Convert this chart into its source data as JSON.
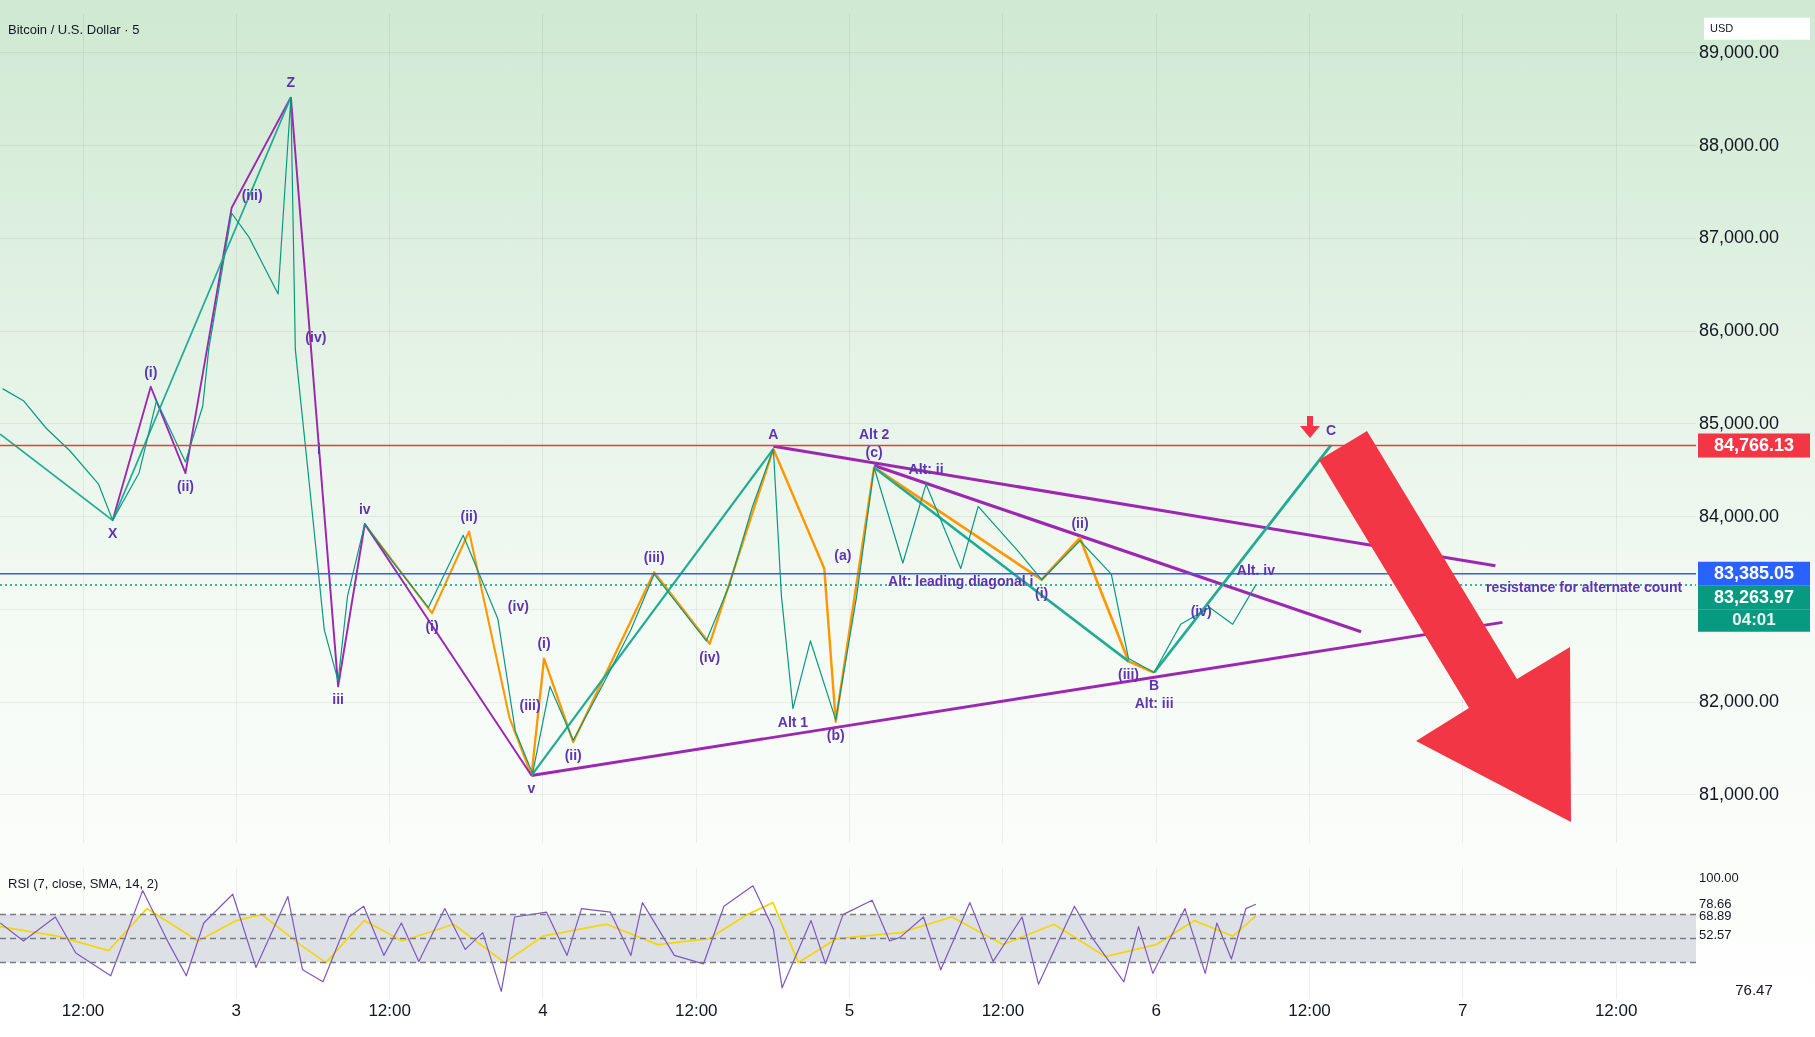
{
  "chart_data": [
    {
      "type": "line",
      "title": "Bitcoin / U.S. Dollar · 5",
      "ylabel": "USD",
      "tick_labels": "y",
      "grid": true,
      "xlim": [
        "--04-02T05:30",
        "--04-07T18:15"
      ],
      "xticks": [
        {
          "value": "--04-02T12:00",
          "label": "12:00"
        },
        {
          "value": "--04-03",
          "label": "3"
        },
        {
          "value": "--04-03T12:00",
          "label": "12:00"
        },
        {
          "value": "--04-04",
          "label": "4"
        },
        {
          "value": "--04-04T12:00",
          "label": "12:00"
        },
        {
          "value": "--04-05",
          "label": "5"
        },
        {
          "value": "--04-05T12:00",
          "label": "12:00"
        },
        {
          "value": "--04-06",
          "label": "6"
        },
        {
          "value": "--04-06T12:00",
          "label": "12:00"
        },
        {
          "value": "--04-07",
          "label": "7"
        },
        {
          "value": "--04-07T12:00",
          "label": "12:00"
        }
      ],
      "ylim": [
        80480,
        89420
      ],
      "yticks": [
        {
          "value": 81000,
          "label": "81,000.00"
        },
        {
          "value": 82000,
          "label": "82,000.00"
        },
        {
          "value": 83000,
          "label": null
        },
        {
          "value": 84000,
          "label": "84,000.00"
        },
        {
          "value": 85000,
          "label": "85,000.00"
        },
        {
          "value": 86000,
          "label": "86,000.00"
        },
        {
          "value": 87000,
          "label": "87,000.00"
        },
        {
          "value": 88000,
          "label": "88,000.00"
        },
        {
          "value": 89000,
          "label": "89,000.00"
        }
      ],
      "series": [
        {
          "type": "line",
          "color": "#089981",
          "x": [
            "--04-02T05:42",
            "--04-02T07:20",
            "--04-02T09:08",
            "--04-02T10:58",
            "--04-02T13:13",
            "--04-02T14:19",
            "--04-02T16:23",
            "--04-02T17:45",
            "--04-02T20:01",
            "--04-02T21:22",
            "--04-02T21:50",
            "--04-02T23:38",
            "--04-03T01:00",
            "--04-03T03:16",
            "--04-03T04:16",
            "--04-03T04:37",
            "--04-03T05:32",
            "--04-03T06:53",
            "--04-03T07:58",
            "--04-03T08:42",
            "--04-03T10:03",
            "--04-03T12:19",
            "--04-03T15:02",
            "--04-03T17:45",
            "--04-03T20:28",
            "--04-03T21:50",
            "--04-03T23:11",
            "--04-04T00:33",
            "--04-04T02:22",
            "--04-04T04:37",
            "--04-04T06:53",
            "--04-04T08:42",
            "--04-04T12:47",
            "--04-04T14:35",
            "--04-04T16:24",
            "--04-04T18:02",
            "--04-04T18:40",
            "--04-04T19:34",
            "--04-04T20:56",
            "--04-04T22:55",
            "--04-05T00:33",
            "--04-05T01:55",
            "--04-05T04:10",
            "--04-05T05:59",
            "--04-05T08:42",
            "--04-05T10:04",
            "--04-05T13:14",
            "--04-05T15:02",
            "--04-05T18:02",
            "--04-05T20:29",
            "--04-05T21:50",
            "--04-05T23:50",
            "--04-06T01:55",
            "--04-06T04:11",
            "--04-06T05:59",
            "--04-06T07:48"
          ],
          "values": [
            85380,
            85250,
            84950,
            84710,
            84350,
            83960,
            84470,
            85250,
            84590,
            85190,
            85800,
            87270,
            87010,
            86400,
            88520,
            85800,
            84590,
            82780,
            82230,
            83140,
            83920,
            83500,
            83020,
            83800,
            82900,
            81690,
            81230,
            82170,
            81590,
            82170,
            82780,
            83380,
            82660,
            83260,
            84110,
            84730,
            83140,
            81930,
            82660,
            81810,
            83140,
            84530,
            83500,
            84350,
            83440,
            84110,
            83620,
            83320,
            83740,
            83380,
            82470,
            82320,
            82840,
            83020,
            82840,
            83263.97
          ]
        },
        {
          "type": "line",
          "color": "#22ab94",
          "x": [
            "--04-02T05:31",
            "--04-02T14:19",
            "--04-03T04:16"
          ],
          "values": [
            84890,
            83960,
            88520
          ]
        },
        {
          "type": "line",
          "color": "#9c27b0",
          "x": [
            "--04-02T14:19",
            "--04-02T17:18",
            "--04-02T20:01",
            "--04-02T23:38",
            "--04-03T04:16"
          ],
          "values": [
            83960,
            85400,
            84470,
            87330,
            88520
          ]
        },
        {
          "type": "line",
          "color": "#9c27b0",
          "x": [
            "--04-03T04:16",
            "--04-03T07:58",
            "--04-03T10:03",
            "--04-03T23:06"
          ],
          "values": [
            88520,
            82170,
            83920,
            81210
          ]
        },
        {
          "type": "line",
          "color": "#ff9800",
          "x": [
            "--04-03T10:03",
            "--04-03T15:19",
            "--04-03T18:13",
            "--04-03T21:23",
            "--04-03T23:06"
          ],
          "values": [
            83920,
            82960,
            83840,
            81830,
            81210
          ]
        },
        {
          "type": "line",
          "color": "#22ab94",
          "x": [
            "--04-03T23:06",
            "--04-04T18:02"
          ],
          "values": [
            81210,
            84730
          ]
        },
        {
          "type": "line",
          "color": "#ff9800",
          "x": [
            "--04-03T23:06",
            "--04-04T00:05",
            "--04-04T02:22",
            "--04-04T08:42",
            "--04-04T13:03",
            "--04-04T18:02"
          ],
          "values": [
            81210,
            82470,
            81570,
            83400,
            82630,
            84730
          ]
        },
        {
          "type": "line",
          "color": "#ff9800",
          "x": [
            "--04-04T18:02",
            "--04-04T22:01",
            "--04-04T22:55",
            "--04-05T01:55"
          ],
          "values": [
            84730,
            83440,
            81790,
            84530
          ]
        },
        {
          "type": "line",
          "color": "#22ab94",
          "x": [
            "--04-05T01:55",
            "--04-05T21:50"
          ],
          "values": [
            84530,
            82440
          ]
        },
        {
          "type": "line",
          "color": "#ff9800",
          "x": [
            "--04-05T01:55",
            "--04-05T15:02",
            "--04-05T18:02",
            "--04-05T21:50",
            "--04-05T23:50"
          ],
          "values": [
            84530,
            83320,
            83770,
            82440,
            82320
          ]
        },
        {
          "type": "line",
          "color": "#22ab94",
          "x": [
            "--04-05T23:50",
            "--04-06T13:41"
          ],
          "values": [
            82320,
            84770
          ]
        },
        {
          "type": "line",
          "color": "#9c27b0",
          "x": [
            "--04-03T23:06",
            "--04-07T03:06"
          ],
          "values": [
            81210,
            82860
          ]
        },
        {
          "type": "line",
          "color": "#9c27b0",
          "x": [
            "--04-04T18:02",
            "--04-07T02:33"
          ],
          "values": [
            84760,
            83470
          ]
        },
        {
          "type": "line",
          "color": "#9c27b0",
          "x": [
            "--04-05T01:55",
            "--04-06T16:02"
          ],
          "values": [
            84550,
            82760
          ]
        }
      ],
      "ref_lines": [
        {
          "axis": "y",
          "value": 84766.13,
          "label": "84,766.13",
          "color": "#f23645"
        },
        {
          "axis": "y",
          "value": 83385.05,
          "label": "83,385.05",
          "color": "#2962ff"
        },
        {
          "axis": "y",
          "value": 83263.97,
          "label": "83,263.97",
          "color": "#089981",
          "line_style": "dotted"
        }
      ],
      "annotations": [
        "04:01",
        {
          "text": "X",
          "x": "--04-02T14:19",
          "y": 83960
        },
        {
          "text": "(i)",
          "x": "--04-02T17:18",
          "y": 85400
        },
        {
          "text": "(ii)",
          "x": "--04-02T20:01",
          "y": 84470
        },
        {
          "text": "(iii)",
          "x": "--04-02T23:38",
          "y": 87330
        },
        {
          "text": "Z",
          "x": "--04-03T04:16",
          "y": 88520
        },
        {
          "text": "(iv)",
          "x": "--04-03T04:37",
          "y": 85800
        },
        {
          "text": "i",
          "x": "--04-03T05:32",
          "y": 84590
        },
        {
          "text": "iii",
          "x": "--04-03T07:58",
          "y": 82170
        },
        {
          "text": "iv",
          "x": "--04-03T10:03",
          "y": 83920
        },
        {
          "text": "(i)",
          "x": "--04-03T15:19",
          "y": 82960
        },
        {
          "text": "(ii)",
          "x": "--04-03T18:13",
          "y": 83840
        },
        {
          "text": "(iii)",
          "x": "--04-03T21:23",
          "y": 81830
        },
        {
          "text": "(iv)",
          "x": "--04-03T20:28",
          "y": 82900
        },
        {
          "text": "v",
          "x": "--04-03T23:06",
          "y": 81210
        },
        {
          "text": "(i)",
          "x": "--04-04T00:05",
          "y": 82470
        },
        {
          "text": "(ii)",
          "x": "--04-04T02:22",
          "y": 81570
        },
        {
          "text": "(iii)",
          "x": "--04-04T08:42",
          "y": 83400
        },
        {
          "text": "(iv)",
          "x": "--04-04T13:03",
          "y": 82630
        },
        {
          "text": "A",
          "x": "--04-04T18:02",
          "y": 84730
        },
        {
          "text": "(a)",
          "x": "--04-04T22:01",
          "y": 83440
        },
        {
          "text": "(b)",
          "x": "--04-04T22:55",
          "y": 81790
        },
        {
          "text": "(c)",
          "x": "--04-05T01:55",
          "y": 84530
        },
        {
          "text": "Alt 1",
          "x": "--04-04T19:34",
          "y": 81930
        },
        {
          "text": "Alt 2",
          "x": "--04-05T01:55",
          "y": 84530
        },
        {
          "text": "Alt: ii",
          "x": "--04-05T05:59",
          "y": 84350
        },
        {
          "text": "Alt: leading diagonal i",
          "x": "--04-05T08:42",
          "y": 83440
        },
        {
          "text": "(i)",
          "x": "--04-05T15:02",
          "y": 83320
        },
        {
          "text": "(ii)",
          "x": "--04-05T18:02",
          "y": 83770
        },
        {
          "text": "(iii)",
          "x": "--04-05T21:50",
          "y": 82440
        },
        {
          "text": "(iv)",
          "x": "--04-06T01:55",
          "y": 82840
        },
        {
          "text": "B",
          "x": "--04-05T23:50",
          "y": 82320
        },
        {
          "text": "Alt: iii",
          "x": "--04-05T23:50",
          "y": 82320
        },
        {
          "text": "Alt. iv",
          "x": "--04-06T07:48",
          "y": 83263.97
        },
        {
          "text": "C",
          "x": "--04-06T13:41",
          "y": 84770
        },
        {
          "text": "resistance for alternate count",
          "x": "--04-07T17:57",
          "y": 83385.05
        }
      ]
    },
    {
      "type": "line",
      "title": "RSI (7, close, SMA, 14, 2)",
      "xlim": [
        "--04-02T05:30",
        "--04-07T18:15"
      ],
      "xticks": [
        {
          "value": "--04-02T12:00",
          "label": "12:00"
        },
        {
          "value": "--04-03",
          "label": "3"
        },
        {
          "value": "--04-03T12:00",
          "label": "12:00"
        },
        {
          "value": "--04-04",
          "label": "4"
        },
        {
          "value": "--04-04T12:00",
          "label": "12:00"
        },
        {
          "value": "--04-05",
          "label": "5"
        },
        {
          "value": "--04-05T12:00",
          "label": "12:00"
        },
        {
          "value": "--04-06",
          "label": "6"
        },
        {
          "value": "--04-06T12:00",
          "label": "12:00"
        },
        {
          "value": "--04-07",
          "label": "7"
        },
        {
          "value": "--04-07T12:00",
          "label": "12:00"
        }
      ],
      "ylim": [
        0,
        109
      ],
      "yticks": [
        {
          "value": 100,
          "label": "100.00"
        },
        {
          "value": 78.66,
          "label": "78.66"
        },
        {
          "value": 68.89,
          "label": "68.89"
        },
        {
          "value": 52.57,
          "label": "52.57"
        }
      ],
      "grid": "x",
      "bands": [
        {
          "axis": "y",
          "from": 30,
          "to": 70,
          "color": "#dde1e6"
        }
      ],
      "ref_lines": [
        {
          "axis": "y",
          "value": 70,
          "color": "#787b86",
          "line_style": "dashed"
        },
        {
          "axis": "y",
          "value": 50,
          "color": "#787b86",
          "line_style": "dashed"
        },
        {
          "axis": "y",
          "value": 30,
          "color": "#787b86",
          "line_style": "dashed"
        }
      ],
      "series": [
        {
          "type": "line",
          "color": "#7e57c2",
          "x": [
            "--04-02T05:31",
            "--04-02T07:20",
            "--04-02T09:50",
            "--04-02T11:26",
            "--04-02T14:10",
            "--04-02T16:40",
            "--04-02T18:43",
            "--04-02T20:05",
            "--04-02T21:27",
            "--04-02T23:43",
            "--04-03T01:32",
            "--04-03T04:02",
            "--04-03T05:11",
            "--04-03T06:47",
            "--04-03T08:49",
            "--04-03T09:58",
            "--04-03T11:33",
            "--04-03T12:55",
            "--04-03T14:17",
            "--04-03T16:19",
            "--04-03T17:55",
            "--04-03T19:17",
            "--04-03T20:44",
            "--04-03T21:47",
            "--04-04T00:17",
            "--04-04T01:53",
            "--04-04T03:01",
            "--04-04T05:17",
            "--04-04T06:53",
            "--04-04T07:47",
            "--04-04T10:17",
            "--04-04T12:34",
            "--04-04T14:10",
            "--04-04T16:26",
            "--04-04T18:02",
            "--04-04T18:43",
            "--04-04T20:59",
            "--04-04T22:07",
            "--04-04T23:29",
            "--04-05T01:46",
            "--04-05T03:08",
            "--04-05T03:57",
            "--04-05T05:47",
            "--04-05T07:08",
            "--04-05T09:25",
            "--04-05T11:14",
            "--04-05T13:30",
            "--04-05T14:47",
            "--04-05T17:36",
            "--04-05T18:58",
            "--04-05T21:28",
            "--04-05T22:37",
            "--04-05T23:44",
            "--04-06T02:15",
            "--04-06T03:50",
            "--04-06T04:45",
            "--04-06T05:53",
            "--04-06T07:01",
            "--04-06T07:48"
          ],
          "values": [
            63,
            48,
            68,
            38,
            19,
            90,
            46,
            19,
            63,
            87,
            26,
            85,
            24,
            14,
            68,
            77,
            36,
            63,
            31,
            75,
            41,
            55,
            6,
            68,
            72,
            36,
            75,
            72,
            36,
            80,
            36,
            29,
            77,
            94,
            58,
            9,
            65,
            29,
            70,
            82,
            48,
            51,
            68,
            24,
            80,
            31,
            68,
            12,
            77,
            51,
            14,
            60,
            21,
            75,
            21,
            63,
            33,
            75,
            78.66
          ]
        },
        {
          "type": "line",
          "color": "#f5d60a",
          "x": [
            "--04-02T05:30",
            "--04-02T10:00",
            "--04-02T14:00",
            "--04-02T17:00",
            "--04-02T21:00",
            "--04-03T00:00",
            "--04-03T02:00",
            "--04-03T05:00",
            "--04-03T07:00",
            "--04-03T10:00",
            "--04-03T13:00",
            "--04-03T17:00",
            "--04-03T21:00",
            "--04-04T00:00",
            "--04-04T05:00",
            "--04-04T09:00",
            "--04-04T13:00",
            "--04-04T16:00",
            "--04-04T18:00",
            "--04-04T20:00",
            "--04-04T23:00",
            "--04-05T04:00",
            "--04-05T08:00",
            "--04-05T12:00",
            "--04-05T16:00",
            "--04-05T20:00",
            "--04-06T00:00",
            "--04-06T03:00",
            "--04-06T06:00",
            "--04-06T07:48"
          ],
          "values": [
            60,
            52,
            40,
            75,
            48,
            65,
            70,
            45,
            30,
            65,
            48,
            62,
            30,
            52,
            62,
            45,
            50,
            70,
            80,
            30,
            50,
            55,
            68,
            45,
            62,
            35,
            45,
            65,
            52,
            68.89
          ]
        }
      ],
      "annotations": [
        "76.47"
      ]
    }
  ]
}
